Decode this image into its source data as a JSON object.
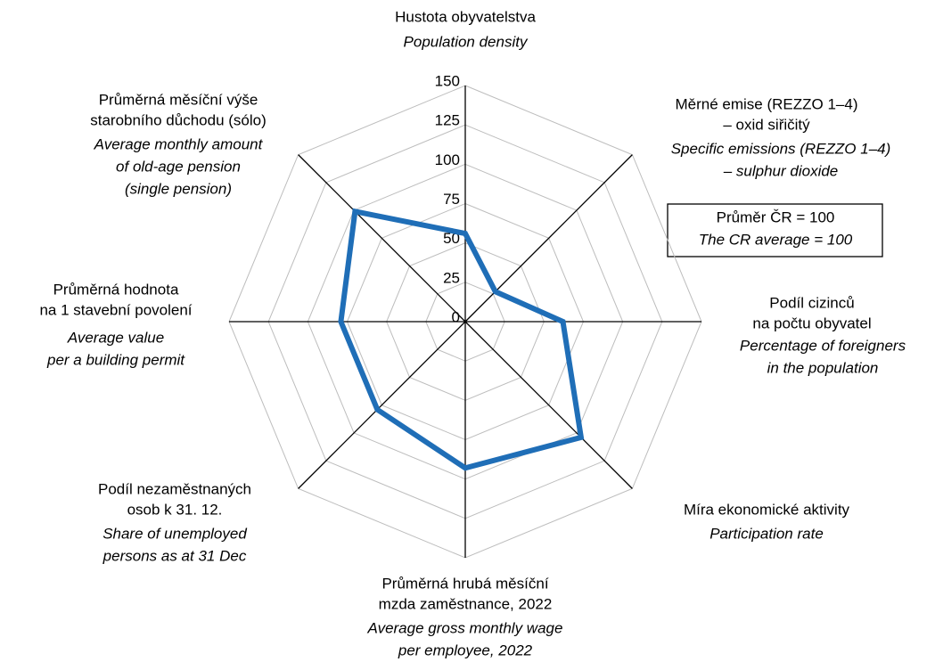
{
  "chart_data": {
    "type": "radar",
    "categories": [
      {
        "cz": [
          "Hustota obyvatelstva"
        ],
        "en": [
          "Population density"
        ]
      },
      {
        "cz": [
          "Měrné emise (REZZO 1–4)",
          "– oxid siřičitý"
        ],
        "en": [
          "Specific emissions (REZZO 1–4)",
          "– sulphur dioxide"
        ]
      },
      {
        "cz": [
          "Podíl cizinců",
          "na počtu obyvatel"
        ],
        "en": [
          "Percentage of foreigners",
          "in the population"
        ]
      },
      {
        "cz": [
          "Míra ekonomické aktivity"
        ],
        "en": [
          "Participation rate"
        ]
      },
      {
        "cz": [
          "Průměrná hrubá měsíční",
          "mzda zaměstnance, 2022"
        ],
        "en": [
          "Average gross monthly wage",
          "per employee, 2022"
        ]
      },
      {
        "cz": [
          "Podíl nezaměstnaných",
          "osob k 31. 12."
        ],
        "en": [
          "Share of unemployed",
          "persons as at 31 Dec"
        ]
      },
      {
        "cz": [
          "Průměrná hodnota",
          "na 1 stavební povolení"
        ],
        "en": [
          "Average value",
          "per a building permit"
        ]
      },
      {
        "cz": [
          "Průměrná měsíční výše",
          "starobního důchodu (sólo)"
        ],
        "en": [
          "Average monthly amount",
          "of old-age pension",
          "(single pension)"
        ]
      }
    ],
    "values": [
      56,
      27,
      62,
      104,
      93,
      79,
      79,
      99
    ],
    "color": "#1f6eb7",
    "ylim": [
      0,
      150
    ],
    "yticks": [
      0,
      25,
      50,
      75,
      100,
      125,
      150
    ],
    "grid": true,
    "annotation": [
      "Průměr ČR = 100",
      "The CR average = 100"
    ]
  }
}
